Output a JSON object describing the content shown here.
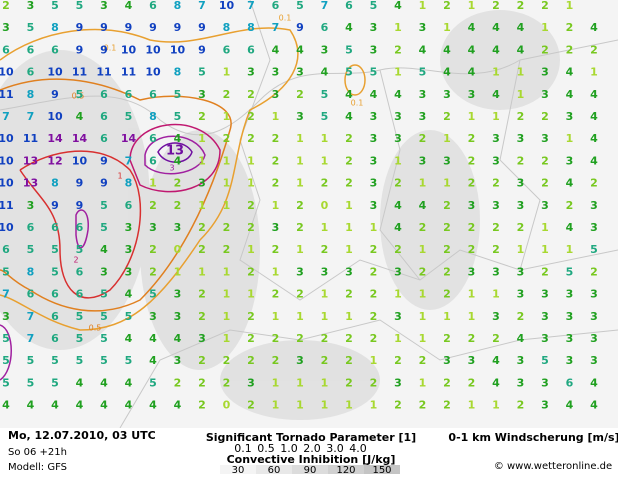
{
  "map": {
    "wind_shear_grid": [
      [
        2,
        3,
        5,
        5,
        3,
        4,
        6,
        8,
        7,
        10,
        7,
        6,
        5,
        7,
        6,
        5,
        4,
        1,
        2,
        1,
        2,
        2,
        2,
        1,
        null
      ],
      [
        3,
        5,
        8,
        9,
        9,
        9,
        9,
        9,
        9,
        8,
        8,
        7,
        9,
        6,
        4,
        3,
        1,
        3,
        1,
        4,
        4,
        4,
        1,
        2,
        4
      ],
      [
        6,
        6,
        6,
        9,
        9,
        10,
        10,
        10,
        9,
        6,
        6,
        4,
        4,
        3,
        5,
        3,
        2,
        4,
        4,
        4,
        4,
        4,
        2,
        2,
        2
      ],
      [
        10,
        6,
        10,
        11,
        11,
        11,
        10,
        8,
        5,
        1,
        3,
        3,
        3,
        4,
        5,
        5,
        1,
        5,
        4,
        4,
        1,
        1,
        3,
        4,
        1
      ],
      [
        11,
        8,
        9,
        5,
        6,
        6,
        6,
        5,
        3,
        2,
        2,
        3,
        2,
        5,
        4,
        4,
        4,
        3,
        3,
        3,
        4,
        1,
        3,
        4,
        4
      ],
      [
        7,
        7,
        10,
        4,
        6,
        5,
        8,
        5,
        2,
        1,
        2,
        1,
        3,
        5,
        4,
        3,
        3,
        3,
        2,
        1,
        1,
        2,
        2,
        3,
        4
      ],
      [
        10,
        11,
        14,
        14,
        6,
        14,
        6,
        4,
        1,
        2,
        2,
        2,
        1,
        1,
        2,
        3,
        3,
        2,
        1,
        2,
        3,
        3,
        3,
        1,
        4
      ],
      [
        10,
        13,
        12,
        10,
        9,
        7,
        6,
        4,
        1,
        1,
        1,
        2,
        1,
        1,
        2,
        3,
        1,
        3,
        3,
        2,
        3,
        2,
        2,
        3,
        4
      ],
      [
        10,
        13,
        8,
        9,
        9,
        8,
        1,
        2,
        3,
        1,
        1,
        2,
        1,
        2,
        2,
        3,
        2,
        1,
        1,
        2,
        2,
        3,
        2,
        4,
        2
      ],
      [
        11,
        3,
        9,
        9,
        5,
        6,
        2,
        2,
        1,
        1,
        2,
        1,
        2,
        0,
        1,
        3,
        4,
        4,
        2,
        3,
        3,
        3,
        3,
        2,
        3
      ],
      [
        10,
        6,
        6,
        6,
        5,
        3,
        3,
        3,
        2,
        2,
        2,
        3,
        2,
        1,
        1,
        1,
        4,
        2,
        2,
        2,
        2,
        2,
        1,
        4,
        3
      ],
      [
        6,
        5,
        5,
        5,
        4,
        3,
        2,
        0,
        2,
        2,
        1,
        2,
        1,
        2,
        1,
        2,
        2,
        1,
        2,
        2,
        2,
        1,
        1,
        1,
        5
      ],
      [
        5,
        8,
        5,
        6,
        3,
        3,
        2,
        1,
        1,
        1,
        2,
        1,
        3,
        3,
        3,
        2,
        3,
        2,
        2,
        3,
        3,
        3,
        2,
        5,
        2
      ],
      [
        7,
        6,
        6,
        6,
        5,
        4,
        5,
        3,
        2,
        1,
        1,
        2,
        2,
        1,
        2,
        2,
        1,
        1,
        2,
        1,
        1,
        3,
        3,
        3,
        3
      ],
      [
        3,
        7,
        6,
        5,
        5,
        5,
        3,
        3,
        2,
        1,
        2,
        1,
        1,
        1,
        1,
        2,
        3,
        1,
        1,
        1,
        3,
        2,
        3,
        3,
        3
      ],
      [
        5,
        7,
        6,
        5,
        5,
        4,
        4,
        4,
        3,
        1,
        2,
        2,
        2,
        2,
        2,
        2,
        1,
        1,
        2,
        2,
        2,
        4,
        3,
        3,
        3
      ],
      [
        5,
        5,
        5,
        5,
        5,
        5,
        4,
        3,
        2,
        2,
        2,
        2,
        3,
        2,
        2,
        1,
        2,
        2,
        3,
        3,
        4,
        3,
        5,
        3,
        3
      ],
      [
        5,
        5,
        5,
        4,
        4,
        4,
        5,
        2,
        2,
        2,
        3,
        1,
        1,
        1,
        2,
        2,
        3,
        1,
        2,
        2,
        4,
        3,
        3,
        6,
        4
      ],
      [
        4,
        4,
        4,
        4,
        4,
        4,
        4,
        4,
        2,
        0,
        2,
        1,
        1,
        1,
        1,
        1,
        2,
        2,
        2,
        1,
        1,
        2,
        3,
        4,
        4
      ]
    ],
    "contour_labels": [
      "0.1",
      "0.1",
      "0.1",
      "0.5",
      "1",
      "2",
      "3",
      "0.5",
      "13"
    ]
  },
  "footer": {
    "date": "Mo, 12.07.2010, 03 UTC",
    "run": "So 06 +21h",
    "model": "Modell: GFS",
    "stp_title": "Significant Tornado Parameter [1]",
    "stp_levels": [
      {
        "label": "0.1",
        "color": "#e8a030"
      },
      {
        "label": "0.5",
        "color": "#e08020"
      },
      {
        "label": "1.0",
        "color": "#d83030"
      },
      {
        "label": "2.0",
        "color": "#c01870"
      },
      {
        "label": "3.0",
        "color": "#a020a0"
      },
      {
        "label": "4.0",
        "color": "#7010a0"
      }
    ],
    "cin_title": "Convective Inhibition [J/kg]",
    "cin_levels": [
      30,
      60,
      90,
      120,
      150
    ],
    "shear_title": "0-1 km Windscherung [m/s]",
    "copyright": "© www.wetteronline.de"
  }
}
